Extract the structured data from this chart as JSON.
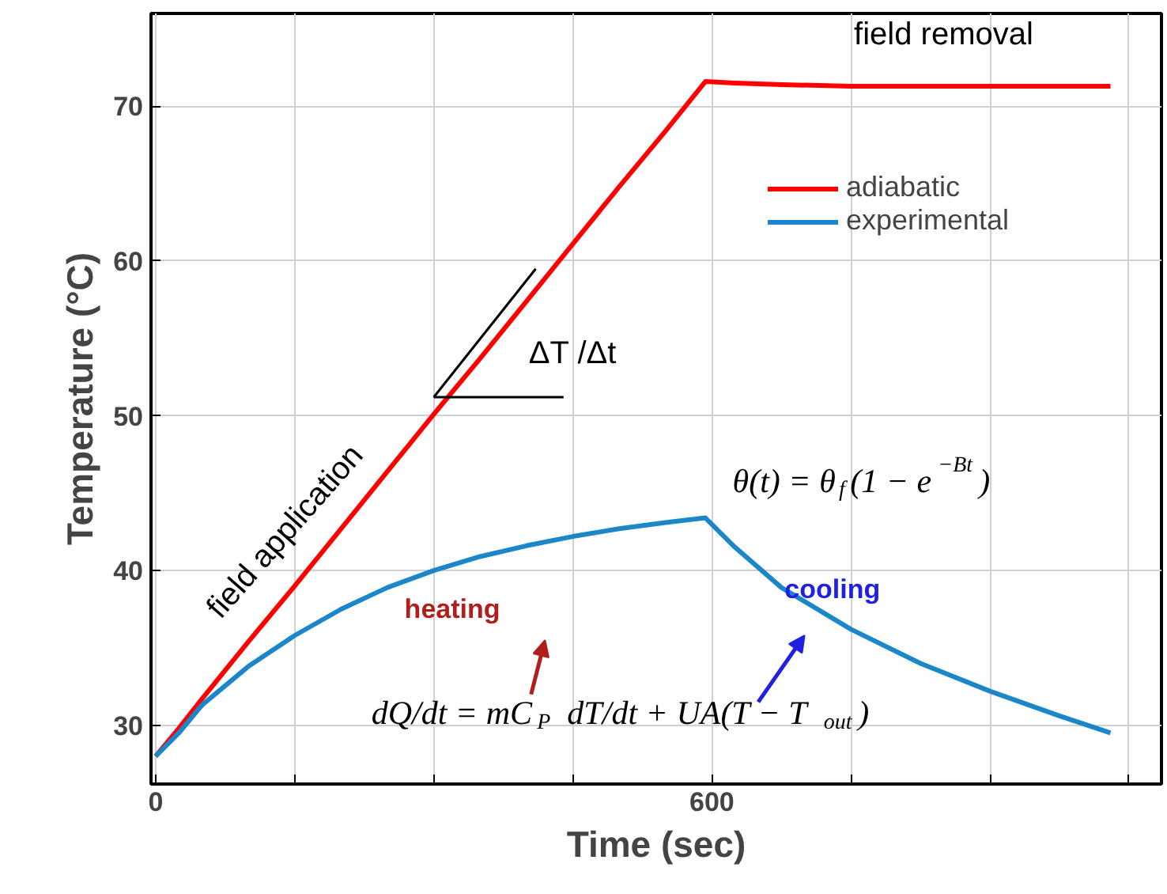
{
  "chart_data": {
    "type": "line",
    "xlabel": "Time (sec)",
    "ylabel": "Temperature (°C)",
    "x": [
      0,
      25,
      50,
      100,
      150,
      200,
      250,
      300,
      350,
      400,
      450,
      500,
      550,
      593,
      625,
      675,
      750,
      825,
      900,
      975,
      1030
    ],
    "series": [
      {
        "name": "adiabatic",
        "color": "#ff0000",
        "values": [
          28,
          29.8,
          31.7,
          35.4,
          39.0,
          42.7,
          46.4,
          50.1,
          53.7,
          57.4,
          61.1,
          64.8,
          68.4,
          71.6,
          71.5,
          71.4,
          71.3,
          71.3,
          71.3,
          71.3,
          71.3
        ]
      },
      {
        "name": "experimental",
        "color": "#1b87c9",
        "values": [
          28,
          29.5,
          31.3,
          33.8,
          35.8,
          37.5,
          38.9,
          40.0,
          40.9,
          41.6,
          42.2,
          42.7,
          43.1,
          43.4,
          41.5,
          38.9,
          36.2,
          34.0,
          32.2,
          30.6,
          29.5
        ]
      },
      {
        "type": "line",
        "color": "#000000",
        "x": [
          300,
          410
        ],
        "values": [
          51.2,
          59.5
        ]
      },
      {
        "type": "line",
        "color": "#000000",
        "x": [
          300,
          440
        ],
        "values": [
          51.2,
          51.2
        ]
      }
    ],
    "xlim": [
      -5,
      1085
    ],
    "ylim": [
      26.2,
      76
    ],
    "xticks": [
      0,
      {
        "value": 150,
        "label": null
      },
      {
        "value": 300,
        "label": null
      },
      {
        "value": 450,
        "label": null
      },
      600,
      {
        "value": 750,
        "label": null
      },
      {
        "value": 900,
        "label": null
      },
      {
        "value": 1050,
        "label": null
      }
    ],
    "yticks": [
      30,
      40,
      50,
      60,
      70
    ],
    "grid": true,
    "legend": "top right",
    "marker": "none",
    "line_style": "solid",
    "annotations": [
      "field removal",
      "field application",
      "ΔT /Δt",
      "heating",
      "cooling",
      "θ(t) = θ$_{f}$(1 − e$^{−Bt}$)",
      "dQ/dt = mC$_{P}$ dT/dt + UA(T − T$_{out}$)"
    ]
  }
}
